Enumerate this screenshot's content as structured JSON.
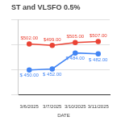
{
  "chart_data": {
    "type": "line",
    "title": "ST and VLSFO 0.5%",
    "x_label": "DATE",
    "categories": [
      "3/6/2025",
      "3/7/2025",
      "3/10/2025",
      "3/11/2025"
    ],
    "series": [
      {
        "color": "#4285f4",
        "values": [
          450,
          452,
          484,
          482
        ],
        "value_labels": [
          "$ 450.00",
          "$ 452.00",
          "$ 484.00",
          "$ 482.00"
        ]
      },
      {
        "color": "#ea4335",
        "values": [
          502,
          499,
          505,
          507
        ],
        "value_labels": [
          "$502.00",
          "$499.00",
          "$505.00",
          "$507.00"
        ]
      }
    ],
    "ylim": [
      400,
      550
    ],
    "yticks": [
      400,
      450,
      500,
      550
    ],
    "grid": true,
    "data_labels": true,
    "tick_labels": "x"
  }
}
